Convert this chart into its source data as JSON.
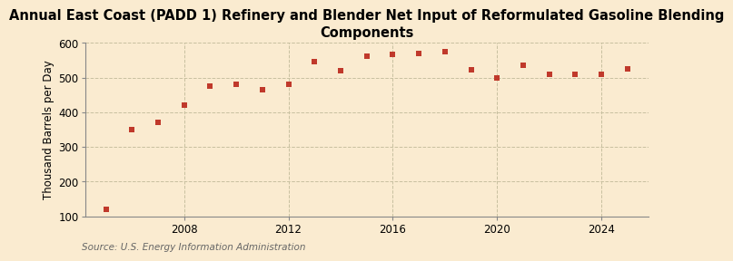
{
  "title": "Annual East Coast (PADD 1) Refinery and Blender Net Input of Reformulated Gasoline Blending\nComponents",
  "ylabel": "Thousand Barrels per Day",
  "source": "Source: U.S. Energy Information Administration",
  "background_color": "#faebd0",
  "plot_bg_color": "#faebd0",
  "marker_color": "#c0392b",
  "years": [
    2005,
    2006,
    2007,
    2008,
    2009,
    2010,
    2011,
    2012,
    2013,
    2014,
    2015,
    2016,
    2017,
    2018,
    2019,
    2020,
    2021,
    2022,
    2023,
    2024,
    2025
  ],
  "values": [
    120,
    350,
    372,
    422,
    475,
    480,
    465,
    480,
    547,
    520,
    562,
    566,
    570,
    575,
    522,
    500,
    536,
    510,
    511,
    510,
    525
  ],
  "ylim": [
    100,
    600
  ],
  "yticks": [
    100,
    200,
    300,
    400,
    500,
    600
  ],
  "xticks": [
    2008,
    2012,
    2016,
    2020,
    2024
  ],
  "xlim": [
    2004.2,
    2025.8
  ],
  "grid_color": "#c8c0a0",
  "title_fontsize": 10.5,
  "label_fontsize": 8.5,
  "tick_fontsize": 8.5,
  "source_fontsize": 7.5
}
